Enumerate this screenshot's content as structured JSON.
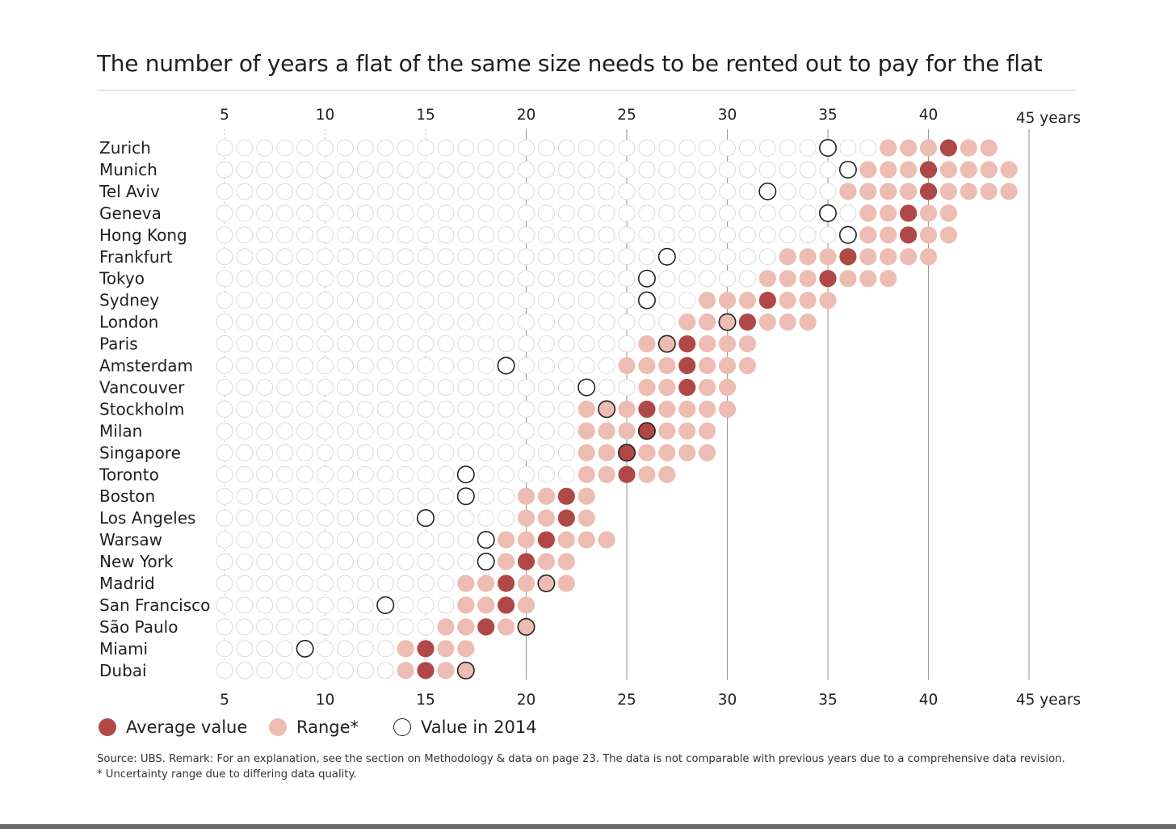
{
  "page": {
    "title": "The number of years a flat of the same size needs to be rented out to pay for the flat",
    "source_line1": "Source: UBS. Remark: For an explanation, see the section on Methodology & data on page 23. The data is not comparable with previous years due to a comprehensive data revision.",
    "source_line2": "* Uncertainty range due to differing data quality."
  },
  "legend": {
    "average": "Average value",
    "range": "Range*",
    "value2014": "Value in 2014"
  },
  "colors": {
    "average": "#b04848",
    "range": "#edbcb2",
    "empty_stroke": "#d9d9d9",
    "outline": "#222222",
    "gridline": "#9a9a9a",
    "text": "#1f1f1f"
  },
  "chart_data": {
    "type": "scatter",
    "title": "The number of years a flat of the same size needs to be rented out to pay for the flat",
    "xlabel": "years",
    "xlim": [
      5,
      45
    ],
    "grid_x": [
      5,
      10,
      15,
      20,
      25,
      30,
      35,
      40,
      45
    ],
    "tick_labels": [
      "5",
      "10",
      "15",
      "20",
      "25",
      "30",
      "35",
      "40",
      "45 years"
    ],
    "cities": [
      {
        "name": "Zurich",
        "range": [
          38,
          43
        ],
        "average": 41,
        "value_2014": 35
      },
      {
        "name": "Munich",
        "range": [
          37,
          44
        ],
        "average": 40,
        "value_2014": 36
      },
      {
        "name": "Tel Aviv",
        "range": [
          36,
          44
        ],
        "average": 40,
        "value_2014": 32
      },
      {
        "name": "Geneva",
        "range": [
          37,
          41
        ],
        "average": 39,
        "value_2014": 35
      },
      {
        "name": "Hong Kong",
        "range": [
          37,
          41
        ],
        "average": 39,
        "value_2014": 36
      },
      {
        "name": "Frankfurt",
        "range": [
          33,
          40
        ],
        "average": 36,
        "value_2014": 27
      },
      {
        "name": "Tokyo",
        "range": [
          32,
          38
        ],
        "average": 35,
        "value_2014": 26
      },
      {
        "name": "Sydney",
        "range": [
          29,
          35
        ],
        "average": 32,
        "value_2014": 26
      },
      {
        "name": "London",
        "range": [
          28,
          34
        ],
        "average": 31,
        "value_2014": 30
      },
      {
        "name": "Paris",
        "range": [
          26,
          31
        ],
        "average": 28,
        "value_2014": 27
      },
      {
        "name": "Amsterdam",
        "range": [
          25,
          31
        ],
        "average": 28,
        "value_2014": 19
      },
      {
        "name": "Vancouver",
        "range": [
          26,
          30
        ],
        "average": 28,
        "value_2014": 23
      },
      {
        "name": "Stockholm",
        "range": [
          23,
          30
        ],
        "average": 26,
        "value_2014": 24
      },
      {
        "name": "Milan",
        "range": [
          23,
          29
        ],
        "average": 26,
        "value_2014": 26
      },
      {
        "name": "Singapore",
        "range": [
          23,
          29
        ],
        "average": 25,
        "value_2014": 25
      },
      {
        "name": "Toronto",
        "range": [
          23,
          27
        ],
        "average": 25,
        "value_2014": 17
      },
      {
        "name": "Boston",
        "range": [
          20,
          23
        ],
        "average": 22,
        "value_2014": 17
      },
      {
        "name": "Los Angeles",
        "range": [
          20,
          23
        ],
        "average": 22,
        "value_2014": 15
      },
      {
        "name": "Warsaw",
        "range": [
          19,
          24
        ],
        "average": 21,
        "value_2014": 18
      },
      {
        "name": "New York",
        "range": [
          19,
          22
        ],
        "average": 20,
        "value_2014": 18
      },
      {
        "name": "Madrid",
        "range": [
          17,
          22
        ],
        "average": 19,
        "value_2014": 21
      },
      {
        "name": "San Francisco",
        "range": [
          17,
          20
        ],
        "average": 19,
        "value_2014": 13
      },
      {
        "name": "São Paulo",
        "range": [
          16,
          20
        ],
        "average": 18,
        "value_2014": 20
      },
      {
        "name": "Miami",
        "range": [
          14,
          17
        ],
        "average": 15,
        "value_2014": 9
      },
      {
        "name": "Dubai",
        "range": [
          14,
          17
        ],
        "average": 15,
        "value_2014": 17
      }
    ]
  }
}
